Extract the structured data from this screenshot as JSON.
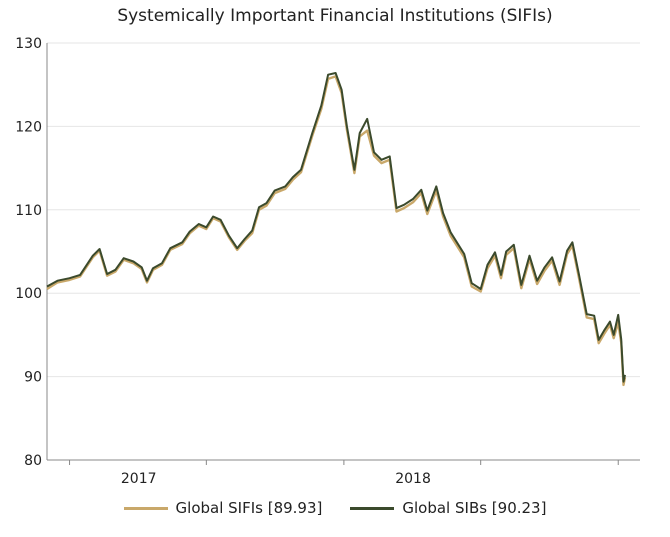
{
  "chart_data": {
    "type": "line",
    "title": "Systemically Important Financial Institutions (SIFIs)",
    "xlabel": "",
    "ylabel": "",
    "ylim": [
      80,
      130
    ],
    "yticks": [
      80,
      90,
      100,
      110,
      120,
      130
    ],
    "xlim": [
      "2016-09-01",
      "2018-10-10"
    ],
    "xtick_labels": [
      {
        "label": "2017",
        "date": "2017-01-01"
      },
      {
        "label": "2018",
        "date": "2018-01-01"
      }
    ],
    "grid": "horizontal",
    "legend_position": "bottom",
    "series": [
      {
        "name": "Global SIFIs [89.93]",
        "color": "#c9a86a",
        "points": [
          [
            "2016-09-01",
            100.5
          ],
          [
            "2016-09-15",
            101.3
          ],
          [
            "2016-10-01",
            101.6
          ],
          [
            "2016-10-15",
            102.0
          ],
          [
            "2016-11-01",
            104.3
          ],
          [
            "2016-11-10",
            105.1
          ],
          [
            "2016-11-20",
            102.1
          ],
          [
            "2016-12-01",
            102.6
          ],
          [
            "2016-12-12",
            104.0
          ],
          [
            "2016-12-25",
            103.6
          ],
          [
            "2017-01-05",
            102.9
          ],
          [
            "2017-01-12",
            101.3
          ],
          [
            "2017-01-20",
            102.8
          ],
          [
            "2017-02-01",
            103.4
          ],
          [
            "2017-02-12",
            105.2
          ],
          [
            "2017-02-28",
            105.9
          ],
          [
            "2017-03-10",
            107.2
          ],
          [
            "2017-03-22",
            108.1
          ],
          [
            "2017-04-01",
            107.7
          ],
          [
            "2017-04-10",
            109.0
          ],
          [
            "2017-04-20",
            108.6
          ],
          [
            "2017-05-01",
            106.7
          ],
          [
            "2017-05-12",
            105.2
          ],
          [
            "2017-05-22",
            106.3
          ],
          [
            "2017-06-01",
            107.2
          ],
          [
            "2017-06-10",
            110.0
          ],
          [
            "2017-06-20",
            110.5
          ],
          [
            "2017-07-01",
            112.0
          ],
          [
            "2017-07-15",
            112.5
          ],
          [
            "2017-07-25",
            113.6
          ],
          [
            "2017-08-05",
            114.5
          ],
          [
            "2017-08-20",
            118.9
          ],
          [
            "2017-09-01",
            122.1
          ],
          [
            "2017-09-10",
            125.7
          ],
          [
            "2017-09-20",
            126.0
          ],
          [
            "2017-09-28",
            124.0
          ],
          [
            "2017-10-05",
            119.6
          ],
          [
            "2017-10-15",
            114.4
          ],
          [
            "2017-10-22",
            118.8
          ],
          [
            "2017-11-01",
            119.5
          ],
          [
            "2017-11-10",
            116.5
          ],
          [
            "2017-11-20",
            115.6
          ],
          [
            "2017-12-01",
            116.0
          ],
          [
            "2017-12-10",
            109.8
          ],
          [
            "2017-12-20",
            110.2
          ],
          [
            "2018-01-01",
            110.9
          ],
          [
            "2018-01-12",
            112.0
          ],
          [
            "2018-01-20",
            109.5
          ],
          [
            "2018-02-01",
            112.3
          ],
          [
            "2018-02-10",
            109.2
          ],
          [
            "2018-02-20",
            106.9
          ],
          [
            "2018-03-01",
            105.6
          ],
          [
            "2018-03-10",
            104.3
          ],
          [
            "2018-03-20",
            100.8
          ],
          [
            "2018-04-01",
            100.2
          ],
          [
            "2018-04-10",
            103.0
          ],
          [
            "2018-04-20",
            104.5
          ],
          [
            "2018-04-28",
            101.8
          ],
          [
            "2018-05-05",
            104.6
          ],
          [
            "2018-05-15",
            105.4
          ],
          [
            "2018-05-25",
            100.6
          ],
          [
            "2018-06-05",
            104.1
          ],
          [
            "2018-06-15",
            101.1
          ],
          [
            "2018-06-25",
            102.7
          ],
          [
            "2018-07-05",
            103.9
          ],
          [
            "2018-07-15",
            101.0
          ],
          [
            "2018-07-25",
            104.7
          ],
          [
            "2018-08-01",
            105.7
          ],
          [
            "2018-08-10",
            101.7
          ],
          [
            "2018-08-20",
            97.1
          ],
          [
            "2018-08-30",
            96.9
          ],
          [
            "2018-09-05",
            94.0
          ],
          [
            "2018-09-12",
            95.1
          ],
          [
            "2018-09-20",
            96.2
          ],
          [
            "2018-09-25",
            94.6
          ],
          [
            "2018-10-01",
            96.5
          ],
          [
            "2018-10-05",
            94.1
          ],
          [
            "2018-10-08",
            89.0
          ],
          [
            "2018-10-10",
            89.9
          ]
        ]
      },
      {
        "name": "Global SIBs [90.23]",
        "color": "#3b4a2c",
        "points": [
          [
            "2016-09-01",
            100.8
          ],
          [
            "2016-09-15",
            101.5
          ],
          [
            "2016-10-01",
            101.8
          ],
          [
            "2016-10-15",
            102.2
          ],
          [
            "2016-11-01",
            104.5
          ],
          [
            "2016-11-10",
            105.3
          ],
          [
            "2016-11-20",
            102.3
          ],
          [
            "2016-12-01",
            102.8
          ],
          [
            "2016-12-12",
            104.2
          ],
          [
            "2016-12-25",
            103.8
          ],
          [
            "2017-01-05",
            103.1
          ],
          [
            "2017-01-12",
            101.5
          ],
          [
            "2017-01-20",
            103.0
          ],
          [
            "2017-02-01",
            103.6
          ],
          [
            "2017-02-12",
            105.4
          ],
          [
            "2017-02-28",
            106.1
          ],
          [
            "2017-03-10",
            107.4
          ],
          [
            "2017-03-22",
            108.3
          ],
          [
            "2017-04-01",
            107.9
          ],
          [
            "2017-04-10",
            109.2
          ],
          [
            "2017-04-20",
            108.8
          ],
          [
            "2017-05-01",
            106.9
          ],
          [
            "2017-05-12",
            105.4
          ],
          [
            "2017-05-22",
            106.5
          ],
          [
            "2017-06-01",
            107.5
          ],
          [
            "2017-06-10",
            110.3
          ],
          [
            "2017-06-20",
            110.8
          ],
          [
            "2017-07-01",
            112.3
          ],
          [
            "2017-07-15",
            112.8
          ],
          [
            "2017-07-25",
            113.9
          ],
          [
            "2017-08-05",
            114.8
          ],
          [
            "2017-08-20",
            119.2
          ],
          [
            "2017-09-01",
            122.5
          ],
          [
            "2017-09-10",
            126.2
          ],
          [
            "2017-09-20",
            126.4
          ],
          [
            "2017-09-28",
            124.4
          ],
          [
            "2017-10-05",
            120.0
          ],
          [
            "2017-10-15",
            114.8
          ],
          [
            "2017-10-22",
            119.2
          ],
          [
            "2017-11-01",
            120.9
          ],
          [
            "2017-11-10",
            116.9
          ],
          [
            "2017-11-20",
            116.0
          ],
          [
            "2017-12-01",
            116.4
          ],
          [
            "2017-12-10",
            110.2
          ],
          [
            "2017-12-20",
            110.6
          ],
          [
            "2018-01-01",
            111.3
          ],
          [
            "2018-01-12",
            112.4
          ],
          [
            "2018-01-20",
            109.9
          ],
          [
            "2018-02-01",
            112.8
          ],
          [
            "2018-02-10",
            109.6
          ],
          [
            "2018-02-20",
            107.3
          ],
          [
            "2018-03-01",
            106.0
          ],
          [
            "2018-03-10",
            104.7
          ],
          [
            "2018-03-20",
            101.2
          ],
          [
            "2018-04-01",
            100.5
          ],
          [
            "2018-04-10",
            103.4
          ],
          [
            "2018-04-20",
            104.9
          ],
          [
            "2018-04-28",
            102.2
          ],
          [
            "2018-05-05",
            105.0
          ],
          [
            "2018-05-15",
            105.8
          ],
          [
            "2018-05-25",
            101.0
          ],
          [
            "2018-06-05",
            104.5
          ],
          [
            "2018-06-15",
            101.5
          ],
          [
            "2018-06-25",
            103.1
          ],
          [
            "2018-07-05",
            104.3
          ],
          [
            "2018-07-15",
            101.4
          ],
          [
            "2018-07-25",
            105.1
          ],
          [
            "2018-08-01",
            106.1
          ],
          [
            "2018-08-10",
            102.1
          ],
          [
            "2018-08-20",
            97.5
          ],
          [
            "2018-08-30",
            97.3
          ],
          [
            "2018-09-05",
            94.4
          ],
          [
            "2018-09-12",
            95.5
          ],
          [
            "2018-09-20",
            96.6
          ],
          [
            "2018-09-25",
            95.0
          ],
          [
            "2018-10-01",
            97.4
          ],
          [
            "2018-10-05",
            94.5
          ],
          [
            "2018-10-08",
            89.4
          ],
          [
            "2018-10-10",
            90.2
          ]
        ]
      }
    ]
  }
}
